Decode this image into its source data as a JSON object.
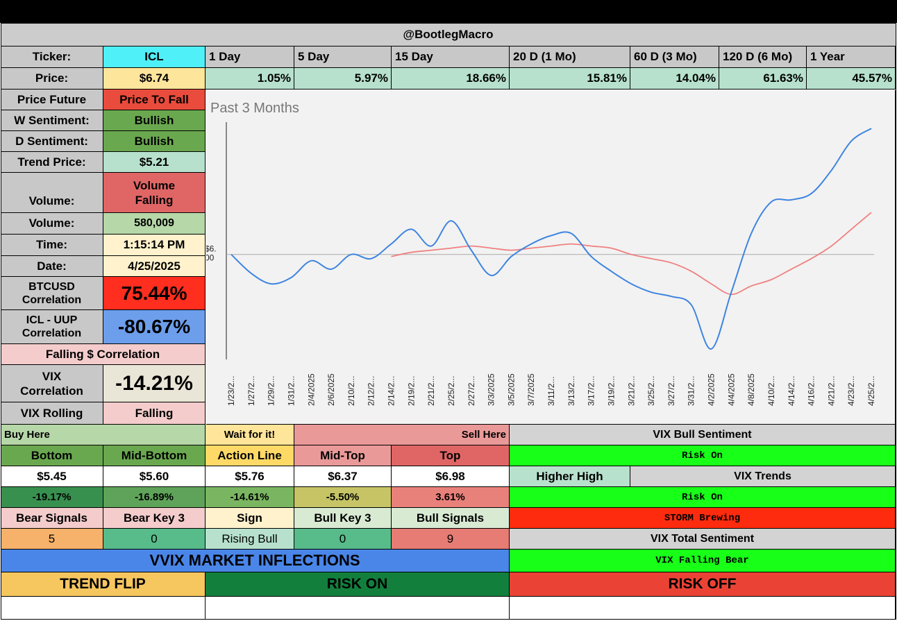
{
  "header": {
    "title": "@BootlegMacro"
  },
  "ticker": {
    "label": "Ticker:",
    "value": "ICL"
  },
  "price": {
    "label": "Price:",
    "value": "$6.74"
  },
  "periods": [
    {
      "label": "1 Day",
      "change": "1.05%"
    },
    {
      "label": "5 Day",
      "change": "5.97%"
    },
    {
      "label": "15 Day",
      "change": "18.66%"
    },
    {
      "label": "20 D (1 Mo)",
      "change": "15.81%"
    },
    {
      "label": "60 D (3 Mo)",
      "change": "14.04%"
    },
    {
      "label": "120 D (6 Mo)",
      "change": "61.63%"
    },
    {
      "label": "1 Year",
      "change": "45.57%"
    }
  ],
  "stats": {
    "price_future": {
      "label": "Price Future",
      "value": "Price To Fall"
    },
    "w_sentiment": {
      "label": "W Sentiment:",
      "value": "Bullish"
    },
    "d_sentiment": {
      "label": "D Sentiment:",
      "value": "Bullish"
    },
    "trend_price": {
      "label": "Trend Price:",
      "value": "$5.21"
    },
    "volume_trend": {
      "label": "Volume:",
      "value": "Volume Falling"
    },
    "volume": {
      "label": "Volume:",
      "value": "580,009"
    },
    "time": {
      "label": "Time:",
      "value": "1:15:14 PM"
    },
    "date": {
      "label": "Date:",
      "value": "4/25/2025"
    },
    "btc_corr": {
      "label": "BTCUSD Correlation",
      "value": "75.44%"
    },
    "uup_corr": {
      "label": "ICL - UUP Correlation",
      "value": "-80.67%"
    },
    "falling_corr": "Falling $ Correlation",
    "vix_corr": {
      "label": "VIX Correlation",
      "value": "-14.21%"
    },
    "vix_rolling": {
      "label": "VIX Rolling",
      "value": "Falling"
    }
  },
  "chart_data": {
    "type": "line",
    "title": "Past 3 Months",
    "ref_label": "$6.00",
    "x": [
      "1/23/2025",
      "1/27/2025",
      "1/29/2025",
      "1/31/2025",
      "2/4/2025",
      "2/6/2025",
      "2/10/2025",
      "2/12/2025",
      "2/14/2025",
      "2/19/2025",
      "2/21/2025",
      "2/25/2025",
      "2/27/2025",
      "3/3/2025",
      "3/5/2025",
      "3/7/2025",
      "3/11/2025",
      "3/13/2025",
      "3/17/2025",
      "3/19/2025",
      "3/21/2025",
      "3/25/2025",
      "3/27/2025",
      "3/31/2025",
      "4/2/2025",
      "4/4/2025",
      "4/8/2025",
      "4/10/2025",
      "4/14/2025",
      "4/16/2025",
      "4/21/2025",
      "4/23/2025",
      "4/25/2025"
    ],
    "x_tick_labels": [
      "1/23/2...",
      "1/27/2...",
      "1/29/2...",
      "1/31/2...",
      "2/4/2025",
      "2/6/2025",
      "2/10/2...",
      "2/12/2...",
      "2/14/2...",
      "2/19/2...",
      "2/21/2...",
      "2/25/2...",
      "2/27/2...",
      "3/3/2025",
      "3/5/2025",
      "3/7/2025",
      "3/11/2...",
      "3/13/2...",
      "3/17/2...",
      "3/19/2...",
      "3/21/2...",
      "3/25/2...",
      "3/27/2...",
      "3/31/2...",
      "4/2/2025",
      "4/4/2025",
      "4/8/2025",
      "4/10/2...",
      "4/14/2...",
      "4/16/2...",
      "4/21/2...",
      "4/23/2...",
      "4/25/2..."
    ],
    "series": [
      {
        "name": "",
        "color": "#3d84e0",
        "values": [
          6.0,
          5.91,
          5.86,
          5.89,
          5.97,
          5.93,
          6.0,
          5.98,
          6.05,
          6.12,
          6.04,
          6.16,
          6.02,
          5.9,
          5.99,
          6.05,
          6.09,
          6.1,
          5.99,
          5.92,
          5.86,
          5.82,
          5.8,
          5.76,
          5.55,
          5.82,
          6.1,
          6.25,
          6.26,
          6.29,
          6.4,
          6.54,
          6.6
        ]
      },
      {
        "name": "",
        "color": "#f08080",
        "values": [
          null,
          null,
          null,
          null,
          null,
          null,
          null,
          null,
          5.99,
          6.01,
          6.02,
          6.03,
          6.04,
          6.03,
          6.02,
          6.03,
          6.04,
          6.05,
          6.04,
          6.03,
          6.0,
          5.98,
          5.96,
          5.92,
          5.86,
          5.81,
          5.85,
          5.88,
          5.93,
          5.98,
          6.04,
          6.12,
          6.2
        ]
      }
    ],
    "grid": false
  },
  "levels": {
    "buy_here": "Buy Here",
    "wait": "Wait for it!",
    "sell_here": "Sell Here",
    "items": [
      {
        "name": "Bottom",
        "price": "$5.45",
        "pct": "-19.17%"
      },
      {
        "name": "Mid-Bottom",
        "price": "$5.60",
        "pct": "-16.89%"
      },
      {
        "name": "Action Line",
        "price": "$5.76",
        "pct": "-14.61%"
      },
      {
        "name": "Mid-Top",
        "price": "$6.37",
        "pct": "-5.50%"
      },
      {
        "name": "Top",
        "price": "$6.98",
        "pct": "3.61%"
      }
    ]
  },
  "signals": {
    "bear_signals": {
      "label": "Bear Signals",
      "value": "5"
    },
    "bear_key": {
      "label": "Bear Key 3",
      "value": "0"
    },
    "sign": {
      "label": "Sign",
      "value": "Rising Bull"
    },
    "bull_key": {
      "label": "Bull Key 3",
      "value": "0"
    },
    "bull_signals": {
      "label": "Bull Signals",
      "value": "9"
    }
  },
  "vix": {
    "bull_sentiment": "VIX Bull Sentiment",
    "risk_on_1": "Risk On",
    "higher_high": "Higher High",
    "vix_trends": "VIX Trends",
    "risk_on_2": "Risk On",
    "storm": "STORM Brewing",
    "total_sentiment": "VIX Total Sentiment",
    "falling_bear": "VIX Falling Bear"
  },
  "vvix": {
    "title": "VVIX MARKET INFLECTIONS",
    "trend_flip": "TREND FLIP",
    "risk_on": "RISK ON",
    "risk_off": "RISK OFF"
  },
  "colors": {
    "cyan": "#4ff0f8",
    "yellow": "#fde59b",
    "mint": "#b7e1cd",
    "red": "#e94b3c",
    "green_mid": "#6aa84f",
    "salmon": "#e06666",
    "lightgreen": "#b6d7a8",
    "lightyellow": "#fff2cc",
    "bright_red": "#ff2e1f",
    "blue": "#6d9eeb",
    "pink": "#f4cccc",
    "grey": "#d3d3d3",
    "lime": "#18ff18"
  }
}
